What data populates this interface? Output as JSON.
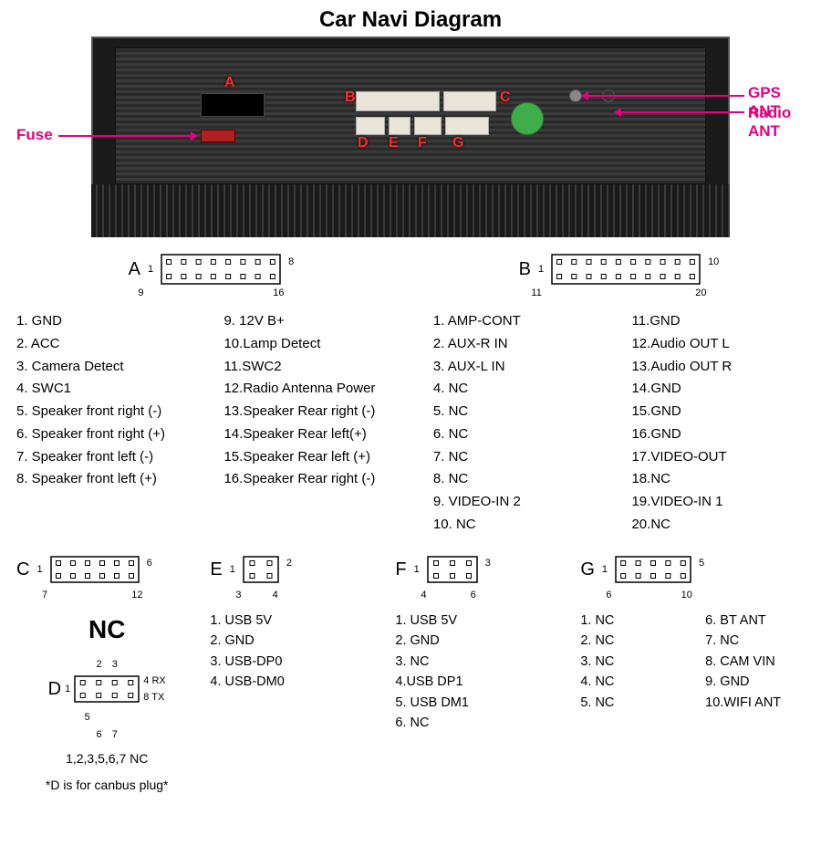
{
  "title": "Car Navi Diagram",
  "colors": {
    "accent": "#e6007e",
    "red": "#ff2a2a",
    "device_bg": "#1a1a1a",
    "sticker": "#3fae4a",
    "port_white": "#e8e5d8",
    "port_black": "#000000",
    "port_red": "#b02020"
  },
  "labels": {
    "fuse": "Fuse",
    "gps": "GPS ANT",
    "radio": "Radio ANT"
  },
  "port_letters": {
    "A": "A",
    "B": "B",
    "C": "C",
    "D": "D",
    "E": "E",
    "F": "F",
    "G": "G"
  },
  "connector_heads": {
    "A": "A",
    "B": "B",
    "C": "C",
    "D": "D",
    "E": "E",
    "F": "F",
    "G": "G"
  },
  "A": {
    "pin_corners": {
      "tl": "1",
      "tr": "8",
      "bl": "9",
      "br": "16"
    },
    "cols": 8,
    "rows": 2,
    "left": [
      "1. GND",
      "2. ACC",
      "3. Camera Detect",
      "4. SWC1",
      "5. Speaker front right (-)",
      "6. Speaker front right (+)",
      "7. Speaker front left (-)",
      "8. Speaker front left (+)"
    ],
    "right": [
      "9.  12V B+",
      "10.Lamp Detect",
      "11.SWC2",
      "12.Radio Antenna Power",
      "13.Speaker Rear right (-)",
      "14.Speaker Rear left(+)",
      "15.Speaker Rear left (+)",
      "16.Speaker Rear right (-)"
    ]
  },
  "B": {
    "pin_corners": {
      "tl": "1",
      "tr": "10",
      "bl": "11",
      "br": "20"
    },
    "cols": 10,
    "rows": 2,
    "left": [
      "1.  AMP-CONT",
      "2.  AUX-R IN",
      "3.  AUX-L IN",
      "4.  NC",
      "5.  NC",
      "6.  NC",
      "7.  NC",
      "8.  NC",
      "9. VIDEO-IN 2",
      "10.  NC"
    ],
    "right": [
      "11.GND",
      "12.Audio OUT  L",
      "13.Audio OUT  R",
      "14.GND",
      "15.GND",
      "16.GND",
      "17.VIDEO-OUT",
      "18.NC",
      "19.VIDEO-IN 1",
      "20.NC"
    ]
  },
  "C": {
    "pin_corners": {
      "tl": "1",
      "tr": "6",
      "bl": "7",
      "br": "12"
    },
    "cols": 6,
    "rows": 2,
    "big": "NC"
  },
  "D": {
    "pin_corners": {
      "top_l": "2",
      "top_r": "3",
      "mid_l": "1",
      "mid_r": "4",
      "mid_rx": "RX",
      "bot_l": "5",
      "bot_r": "8",
      "bot_tx": "TX",
      "low_l": "6",
      "low_r": "7"
    },
    "note1": "1,2,3,5,6,7  NC",
    "note2": "*D is for canbus plug*",
    "cols": 4,
    "rows": 2
  },
  "E": {
    "pin_corners": {
      "tl": "1",
      "tr": "2",
      "bl": "3",
      "br": "4"
    },
    "cols": 2,
    "rows": 2,
    "items": [
      "1. USB 5V",
      "2. GND",
      "3. USB-DP0",
      "4. USB-DM0"
    ]
  },
  "F": {
    "pin_corners": {
      "tl": "1",
      "tr": "3",
      "bl": "4",
      "br": "6"
    },
    "cols": 3,
    "rows": 2,
    "items": [
      "1. USB 5V",
      "2. GND",
      "3. NC",
      "4.USB DP1",
      "5. USB DM1",
      "6. NC"
    ]
  },
  "G": {
    "pin_corners": {
      "tl": "1",
      "tr": "5",
      "bl": "6",
      "br": "10"
    },
    "cols": 5,
    "rows": 2,
    "left": [
      "1. NC",
      "2. NC",
      "3. NC",
      "4. NC",
      "5. NC"
    ],
    "right": [
      "6.  BT ANT",
      "7.  NC",
      "8.  CAM VIN",
      "9.  GND",
      "10.WIFI ANT"
    ]
  }
}
